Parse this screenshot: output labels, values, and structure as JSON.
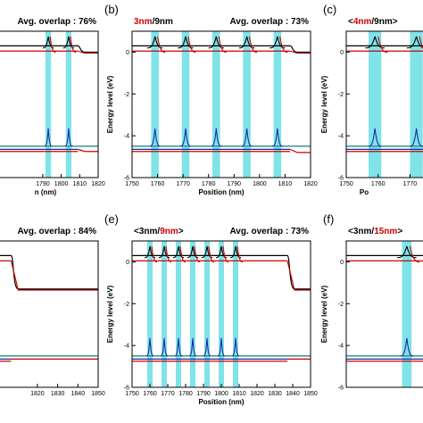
{
  "chart_data": [
    {
      "type": "line",
      "panel_label": "",
      "title": {
        "layers": [],
        "overlap": "Avg. overlap : 76%"
      },
      "xlabel": "n (nm)",
      "ylabel": "",
      "xlim": [
        1763,
        1820
      ],
      "ylim": [
        -6,
        1
      ],
      "xticks": [
        "1790",
        "1800",
        "1810",
        "1820"
      ],
      "yticks": [],
      "wells": [
        [
          1791.5,
          1794.5
        ],
        [
          1802.5,
          1805.5
        ]
      ],
      "cb_level": 0.3,
      "vb_level": -4.5,
      "tail": {
        "x": 1809,
        "cb": 0.0,
        "vb": -4.75
      }
    },
    {
      "type": "line",
      "panel_label": "(b)",
      "title": {
        "layers": [
          {
            "text": "3nm",
            "red": true
          },
          {
            "text": "/",
            "red": false
          },
          {
            "text": "9nm",
            "red": false
          }
        ],
        "overlap": "Avg. overlap : 73%"
      },
      "xlabel": "Position (nm)",
      "ylabel": "Energy level (eV)",
      "xlim": [
        1750,
        1820
      ],
      "ylim": [
        -6,
        1
      ],
      "xticks": [
        "1750",
        "1760",
        "1770",
        "1780",
        "1790",
        "1800",
        "1810",
        "1820"
      ],
      "yticks": [
        "0",
        "-2",
        "-4",
        "-6"
      ],
      "wells": [
        [
          1757.5,
          1760.5
        ],
        [
          1769.5,
          1772.5
        ],
        [
          1781.5,
          1784.5
        ],
        [
          1793.5,
          1796.5
        ],
        [
          1805.5,
          1808.5
        ]
      ],
      "cb_level": 0.3,
      "vb_level": -4.5,
      "tail": {
        "x": 1812,
        "cb": 0.0,
        "vb": -4.8
      }
    },
    {
      "type": "line",
      "panel_label": "(c)",
      "title": {
        "layers": [
          {
            "text": "<",
            "red": false
          },
          {
            "text": "4nm",
            "red": true
          },
          {
            "text": "/9nm>",
            "red": false
          }
        ],
        "overlap": ""
      },
      "xlabel": "Po",
      "ylabel": "Energy level (eV)",
      "xlim": [
        1750,
        1778
      ],
      "ylim": [
        -6,
        1
      ],
      "xticks": [
        "1750",
        "1760",
        "1770"
      ],
      "yticks": [
        "0",
        "-2",
        "-4",
        "-6"
      ],
      "wells": [
        [
          1757,
          1761
        ],
        [
          1770,
          1774
        ]
      ],
      "cb_level": 0.3,
      "vb_level": -4.5,
      "tail": null
    },
    {
      "type": "line",
      "panel_label": "",
      "title": {
        "layers": [],
        "overlap": "Avg. overlap : 84%"
      },
      "xlabel": "",
      "ylabel": "",
      "xlim": [
        1798,
        1850
      ],
      "ylim": [
        -6,
        1
      ],
      "xticks": [
        "1820",
        "1830",
        "1840",
        "1850"
      ],
      "yticks": [],
      "wells": [],
      "cb_level": 0.3,
      "vb_level": -4.5,
      "tail": {
        "x": 1807,
        "cb": -1.3,
        "vb": -4.65
      }
    },
    {
      "type": "line",
      "panel_label": "(e)",
      "title": {
        "layers": [
          {
            "text": "<3nm/",
            "red": false
          },
          {
            "text": "9nm",
            "red": true
          },
          {
            "text": ">",
            "red": false
          }
        ],
        "overlap": "Avg. overlap : 73%"
      },
      "xlabel": "Position (nm)",
      "ylabel": "Energy level (eV)",
      "xlim": [
        1750,
        1850
      ],
      "ylim": [
        -6,
        1
      ],
      "xticks": [
        "1750",
        "1760",
        "1770",
        "1780",
        "1790",
        "1800",
        "1810",
        "1820",
        "1830",
        "1840",
        "1850"
      ],
      "yticks": [
        "0",
        "-2",
        "-4",
        "-6"
      ],
      "wells": [
        [
          1758.5,
          1761.5
        ],
        [
          1766.5,
          1769.5
        ],
        [
          1774.5,
          1777.5
        ],
        [
          1782.5,
          1785.5
        ],
        [
          1790.5,
          1793.5
        ],
        [
          1798.5,
          1801.5
        ],
        [
          1806.5,
          1809.5
        ]
      ],
      "cb_level": 0.3,
      "vb_level": -4.5,
      "tail": {
        "x": 1837,
        "cb": -1.3,
        "vb": -4.65
      }
    },
    {
      "type": "line",
      "panel_label": "(f)",
      "title": {
        "layers": [
          {
            "text": "<3nm/",
            "red": false
          },
          {
            "text": "15nm",
            "red": true
          },
          {
            "text": ">",
            "red": false
          }
        ],
        "overlap": ""
      },
      "xlabel": "",
      "ylabel": "Energy level (eV)",
      "xlim": [
        1750,
        1778
      ],
      "ylim": [
        -6,
        1
      ],
      "xticks": [],
      "yticks": [
        "0",
        "-2",
        "-4",
        "-6"
      ],
      "wells": [
        [
          1767.5,
          1770.5
        ]
      ],
      "cb_level": 0.3,
      "vb_level": -4.5,
      "tail": null
    }
  ],
  "colors": {
    "band": "#000000",
    "red": "#cc0000",
    "blue": "#1a2aa0",
    "teal": "#2a8a8a",
    "well": "#7fe3e8"
  }
}
